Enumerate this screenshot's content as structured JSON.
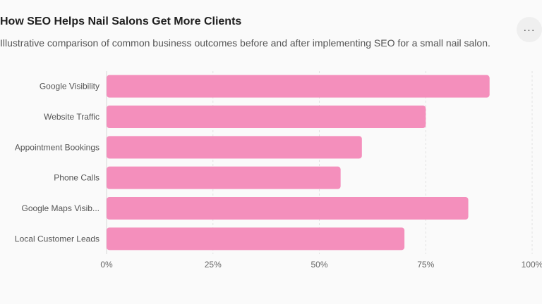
{
  "header": {
    "title": "How SEO Helps Nail Salons Get More Clients",
    "subtitle": "Illustrative comparison of common business outcomes before and after implementing SEO for a small nail salon."
  },
  "menu": {
    "label": "···",
    "icon": "more-horizontal-icon"
  },
  "chart_data": {
    "type": "bar",
    "orientation": "horizontal",
    "categories": [
      "Google Visibility",
      "Website Traffic",
      "Appointment Bookings",
      "Phone Calls",
      "Google Maps Visib...",
      "Local Customer Leads"
    ],
    "values": [
      90,
      75,
      60,
      55,
      85,
      70
    ],
    "xlim": [
      0,
      100
    ],
    "ticks": [
      "0%",
      "25%",
      "50%",
      "75%",
      "100%"
    ],
    "tick_values": [
      0,
      25,
      50,
      75,
      100
    ],
    "grid": true,
    "bar_color": "#f48fbc"
  }
}
